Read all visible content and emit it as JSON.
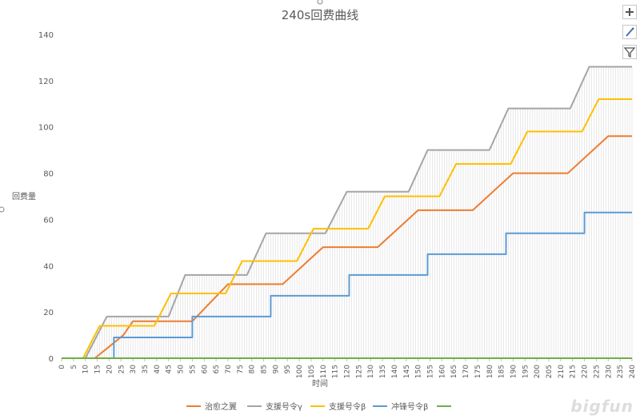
{
  "toolbar": {
    "add_icon": "plus-icon",
    "style_icon": "brush-icon",
    "filter_icon": "filter-icon"
  },
  "watermark": {
    "text": "bigfun"
  },
  "chart_data": {
    "type": "line",
    "title": "240s回费曲线",
    "xlabel": "时间",
    "ylabel": "回费量",
    "xlim": [
      0,
      240
    ],
    "ylim": [
      0,
      140
    ],
    "xticks": [
      0,
      5,
      10,
      15,
      20,
      25,
      30,
      35,
      40,
      45,
      50,
      55,
      60,
      65,
      70,
      75,
      80,
      85,
      90,
      95,
      100,
      105,
      110,
      115,
      120,
      125,
      130,
      135,
      140,
      145,
      150,
      155,
      160,
      165,
      170,
      175,
      180,
      185,
      190,
      195,
      200,
      205,
      210,
      215,
      220,
      225,
      230,
      235,
      240
    ],
    "yticks": [
      0,
      20,
      40,
      60,
      80,
      100,
      120,
      140
    ],
    "grid": "vertical drop lines",
    "legend": "bottom",
    "series": [
      {
        "name": "治愈之翼",
        "color": "#ed7d31",
        "points": [
          [
            14,
            0
          ],
          [
            26,
            10
          ],
          [
            30,
            16
          ],
          [
            55,
            16
          ],
          [
            70,
            32
          ],
          [
            93,
            32
          ],
          [
            110,
            48
          ],
          [
            133,
            48
          ],
          [
            150,
            64
          ],
          [
            173,
            64
          ],
          [
            190,
            80
          ],
          [
            213,
            80
          ],
          [
            230,
            96
          ],
          [
            240,
            96
          ]
        ]
      },
      {
        "name": "支援号令γ",
        "color": "#a5a5a5",
        "points": [
          [
            10,
            0
          ],
          [
            19,
            18
          ],
          [
            45,
            18
          ],
          [
            52,
            36
          ],
          [
            78,
            36
          ],
          [
            86,
            54
          ],
          [
            111,
            54
          ],
          [
            120,
            72
          ],
          [
            146,
            72
          ],
          [
            154,
            90
          ],
          [
            180,
            90
          ],
          [
            188,
            108
          ],
          [
            214,
            108
          ],
          [
            222,
            126
          ],
          [
            240,
            126
          ]
        ]
      },
      {
        "name": "支援号令β",
        "color": "#ffc000",
        "points": [
          [
            9,
            0
          ],
          [
            16,
            14
          ],
          [
            39,
            14
          ],
          [
            46,
            28
          ],
          [
            69,
            28
          ],
          [
            76,
            42
          ],
          [
            99,
            42
          ],
          [
            106,
            56
          ],
          [
            129,
            56
          ],
          [
            136,
            70
          ],
          [
            159,
            70
          ],
          [
            166,
            84
          ],
          [
            189,
            84
          ],
          [
            196,
            98
          ],
          [
            219,
            98
          ],
          [
            226,
            112
          ],
          [
            240,
            112
          ]
        ]
      },
      {
        "name": "冲锋号令β",
        "color": "#5b9bd5",
        "points": [
          [
            22,
            0
          ],
          [
            22,
            9
          ],
          [
            55,
            9
          ],
          [
            55,
            18
          ],
          [
            88,
            18
          ],
          [
            88,
            27
          ],
          [
            121,
            27
          ],
          [
            121,
            36
          ],
          [
            154,
            36
          ],
          [
            154,
            45
          ],
          [
            187,
            45
          ],
          [
            187,
            54
          ],
          [
            220,
            54
          ],
          [
            220,
            63
          ],
          [
            240,
            63
          ]
        ]
      },
      {
        "name": "",
        "color": "#70ad47",
        "points": [
          [
            0,
            0
          ],
          [
            240,
            0
          ]
        ]
      }
    ]
  }
}
